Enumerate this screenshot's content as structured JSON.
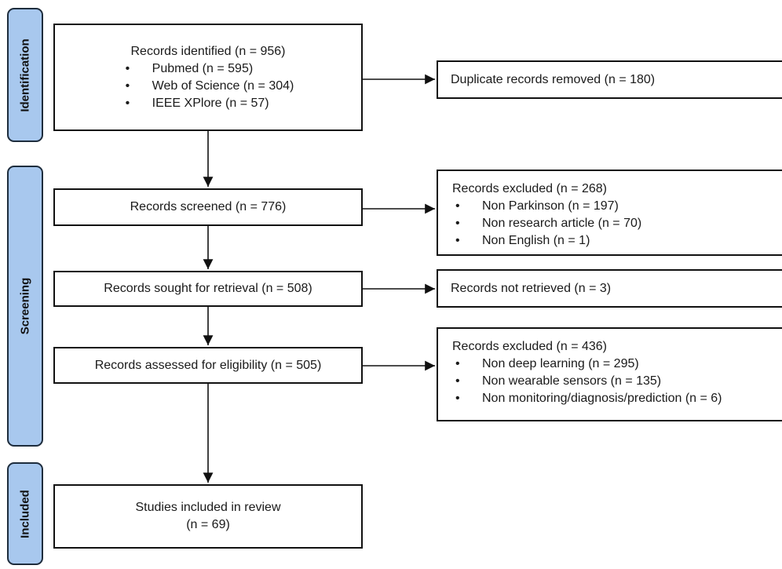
{
  "phases": {
    "identification": "Identification",
    "screening": "Screening",
    "included": "Included"
  },
  "identified": {
    "title": "Records identified (n = 956)",
    "items": [
      "Pubmed (n = 595)",
      "Web of Science (n = 304)",
      "IEEE XPlore (n = 57)"
    ]
  },
  "duplicates": {
    "text": "Duplicate records removed  (n = 180)"
  },
  "screened": {
    "text": "Records screened (n = 776)"
  },
  "excluded_screen": {
    "title": "Records excluded (n = 268)",
    "items": [
      "Non Parkinson (n = 197)",
      "Non research article (n = 70)",
      "Non English (n = 1)"
    ]
  },
  "sought": {
    "text": "Records sought for retrieval (n = 508)"
  },
  "not_retrieved": {
    "text": "Records not retrieved (n = 3)"
  },
  "assessed": {
    "text": "Records assessed for eligibility (n = 505)"
  },
  "excluded_eligibility": {
    "title": "Records excluded (n = 436)",
    "items": [
      "Non deep learning (n = 295)",
      "Non wearable sensors (n = 135)",
      "Non monitoring/diagnosis/prediction (n = 6)"
    ]
  },
  "included": {
    "line1": "Studies included in review",
    "line2": "(n = 69)"
  },
  "colors": {
    "phase_fill": "#a8c8ee",
    "phase_border": "#1e2d3d",
    "line": "#111111"
  }
}
